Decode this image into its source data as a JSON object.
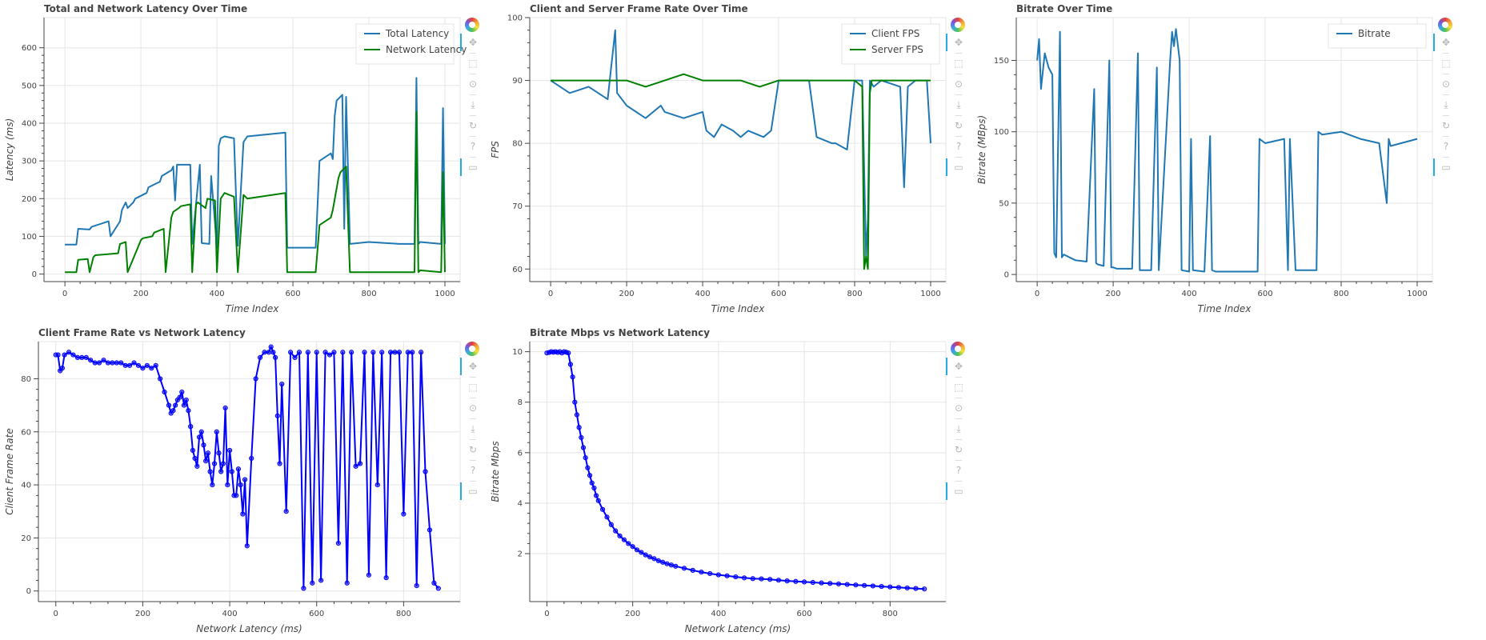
{
  "colors": {
    "blue": "#1f77b4",
    "green": "#008000",
    "scatter": "#0000ff",
    "grid": "#e5e5e5",
    "axis": "#444444",
    "active_tool": "#26aae1"
  },
  "toolbar": {
    "tools": [
      {
        "name": "bokeh-logo-icon",
        "glyph": ""
      },
      {
        "name": "pan-tool-icon",
        "glyph": "✥"
      },
      {
        "name": "box-zoom-tool-icon",
        "glyph": "⬚"
      },
      {
        "name": "wheel-zoom-tool-icon",
        "glyph": "⊙"
      },
      {
        "name": "save-tool-icon",
        "glyph": "⤓"
      },
      {
        "name": "reset-tool-icon",
        "glyph": "↻"
      },
      {
        "name": "help-tool-icon",
        "glyph": "?"
      },
      {
        "name": "hover-tool-icon",
        "glyph": "▭"
      }
    ]
  },
  "chart_data": [
    {
      "type": "line",
      "title": "Total and Network Latency Over Time",
      "xlabel": "Time Index",
      "ylabel": "Latency (ms)",
      "xlim": [
        -55,
        1040
      ],
      "ylim": [
        -20,
        680
      ],
      "xticks": [
        0,
        200,
        400,
        600,
        800,
        1000
      ],
      "yticks": [
        0,
        100,
        200,
        300,
        400,
        500,
        600
      ],
      "legend": "top-right",
      "series": [
        {
          "name": "Total Latency",
          "color": "#1f77b4",
          "x": [
            0,
            30,
            35,
            65,
            70,
            115,
            120,
            145,
            150,
            160,
            165,
            180,
            185,
            215,
            220,
            250,
            255,
            280,
            285,
            290,
            295,
            330,
            335,
            355,
            360,
            380,
            385,
            400,
            405,
            410,
            420,
            445,
            455,
            470,
            480,
            580,
            585,
            660,
            670,
            700,
            705,
            710,
            715,
            730,
            735,
            740,
            750,
            800,
            880,
            920,
            925,
            930,
            935,
            990,
            995,
            1000
          ],
          "y": [
            78,
            78,
            120,
            118,
            125,
            140,
            100,
            140,
            170,
            190,
            175,
            190,
            200,
            215,
            230,
            245,
            260,
            275,
            285,
            195,
            290,
            290,
            80,
            290,
            82,
            80,
            260,
            70,
            340,
            360,
            365,
            360,
            75,
            350,
            365,
            375,
            70,
            70,
            300,
            320,
            305,
            420,
            460,
            475,
            120,
            470,
            80,
            85,
            80,
            80,
            520,
            80,
            85,
            80,
            440,
            80
          ]
        },
        {
          "name": "Network Latency",
          "color": "#008000",
          "x": [
            0,
            30,
            35,
            60,
            65,
            75,
            80,
            140,
            145,
            160,
            165,
            200,
            205,
            230,
            235,
            260,
            265,
            280,
            285,
            300,
            305,
            330,
            335,
            345,
            350,
            370,
            375,
            395,
            400,
            410,
            420,
            445,
            455,
            470,
            480,
            580,
            585,
            660,
            670,
            700,
            705,
            720,
            725,
            740,
            750,
            920,
            925,
            930,
            935,
            990,
            995,
            1000
          ],
          "y": [
            5,
            5,
            38,
            40,
            5,
            45,
            50,
            55,
            80,
            85,
            5,
            90,
            95,
            100,
            110,
            120,
            5,
            150,
            165,
            175,
            180,
            185,
            5,
            185,
            190,
            175,
            200,
            195,
            5,
            200,
            215,
            205,
            5,
            210,
            200,
            215,
            5,
            5,
            130,
            150,
            170,
            255,
            270,
            285,
            5,
            5,
            430,
            5,
            10,
            5,
            270,
            5
          ]
        }
      ]
    },
    {
      "type": "line",
      "title": "Client and Server Frame Rate Over Time",
      "xlabel": "Time Index",
      "ylabel": "FPS",
      "xlim": [
        -55,
        1040
      ],
      "ylim": [
        58,
        100
      ],
      "xticks": [
        0,
        200,
        400,
        600,
        800,
        1000
      ],
      "yticks": [
        60,
        70,
        80,
        90,
        100
      ],
      "legend": "top-right",
      "series": [
        {
          "name": "Client FPS",
          "color": "#1f77b4",
          "x": [
            0,
            50,
            100,
            150,
            170,
            175,
            200,
            250,
            290,
            300,
            350,
            400,
            410,
            430,
            450,
            480,
            500,
            520,
            560,
            580,
            600,
            680,
            700,
            740,
            750,
            780,
            800,
            820,
            830,
            835,
            840,
            850,
            870,
            920,
            930,
            940,
            960,
            990,
            1000
          ],
          "y": [
            90,
            88,
            89,
            87,
            98,
            88,
            86,
            84,
            86,
            85,
            84,
            85,
            82,
            81,
            83,
            82,
            81,
            82,
            81,
            82,
            90,
            90,
            81,
            80,
            80,
            79,
            90,
            90,
            62,
            68,
            90,
            89,
            90,
            89,
            73,
            89,
            90,
            90,
            80
          ]
        },
        {
          "name": "Server FPS",
          "color": "#008000",
          "x": [
            0,
            50,
            100,
            150,
            200,
            250,
            300,
            350,
            400,
            450,
            500,
            550,
            600,
            650,
            700,
            750,
            800,
            820,
            825,
            830,
            835,
            840,
            845,
            850,
            900,
            950,
            1000
          ],
          "y": [
            90,
            90,
            90,
            90,
            90,
            89,
            90,
            91,
            90,
            90,
            90,
            89,
            90,
            90,
            90,
            90,
            90,
            89,
            60,
            62,
            60,
            88,
            90,
            90,
            90,
            90,
            90
          ]
        }
      ]
    },
    {
      "type": "line",
      "title": "Bitrate Over Time",
      "xlabel": "Time Index",
      "ylabel": "Bitrate (MBps)",
      "xlim": [
        -55,
        1040
      ],
      "ylim": [
        -5,
        180
      ],
      "xticks": [
        0,
        200,
        400,
        600,
        800,
        1000
      ],
      "yticks": [
        0,
        50,
        100,
        150
      ],
      "legend": "top-right",
      "series": [
        {
          "name": "Bitrate",
          "color": "#1f77b4",
          "x": [
            0,
            5,
            10,
            20,
            30,
            40,
            45,
            50,
            60,
            65,
            70,
            100,
            130,
            150,
            155,
            160,
            175,
            190,
            195,
            200,
            210,
            250,
            265,
            270,
            300,
            315,
            320,
            350,
            355,
            360,
            365,
            375,
            380,
            400,
            405,
            410,
            440,
            455,
            460,
            470,
            580,
            585,
            600,
            650,
            660,
            665,
            680,
            700,
            735,
            740,
            750,
            800,
            850,
            900,
            920,
            925,
            930,
            1000
          ],
          "y": [
            150,
            165,
            130,
            155,
            145,
            140,
            15,
            12,
            170,
            12,
            14,
            10,
            9,
            130,
            8,
            7,
            6,
            150,
            5,
            5,
            4,
            4,
            155,
            3,
            3,
            145,
            3,
            150,
            170,
            160,
            172,
            150,
            3,
            2,
            95,
            3,
            2,
            97,
            3,
            2,
            2,
            95,
            92,
            95,
            3,
            95,
            3,
            3,
            3,
            100,
            98,
            100,
            95,
            92,
            50,
            95,
            90,
            95
          ]
        }
      ]
    },
    {
      "type": "line",
      "title": "Client Frame Rate vs Network Latency",
      "xlabel": "Network Latency (ms)",
      "ylabel": "Client Frame Rate",
      "xlim": [
        -40,
        930
      ],
      "ylim": [
        -4,
        94
      ],
      "xticks": [
        0,
        200,
        400,
        600,
        800
      ],
      "yticks": [
        0,
        20,
        40,
        60,
        80
      ],
      "markers": true,
      "series": [
        {
          "name": "",
          "color": "#0000ff",
          "x": [
            0,
            5,
            10,
            15,
            20,
            30,
            40,
            50,
            60,
            70,
            80,
            90,
            100,
            110,
            120,
            130,
            140,
            150,
            160,
            170,
            180,
            190,
            200,
            210,
            220,
            230,
            240,
            250,
            260,
            265,
            270,
            275,
            280,
            285,
            290,
            295,
            300,
            305,
            310,
            315,
            320,
            325,
            330,
            335,
            340,
            345,
            350,
            355,
            360,
            365,
            370,
            375,
            380,
            385,
            390,
            395,
            400,
            405,
            410,
            415,
            420,
            425,
            430,
            435,
            440,
            450,
            460,
            470,
            480,
            490,
            495,
            500,
            505,
            510,
            515,
            520,
            530,
            540,
            550,
            560,
            570,
            580,
            590,
            600,
            610,
            620,
            630,
            640,
            650,
            660,
            670,
            680,
            690,
            700,
            710,
            720,
            730,
            740,
            750,
            760,
            770,
            780,
            790,
            800,
            810,
            820,
            830,
            840,
            850,
            860,
            870,
            880
          ],
          "y": [
            89,
            89,
            83,
            84,
            89,
            90,
            89,
            88,
            88,
            88,
            87,
            86,
            86,
            87,
            86,
            86,
            86,
            86,
            85,
            85,
            86,
            85,
            84,
            85,
            84,
            85,
            80,
            75,
            70,
            67,
            68,
            70,
            72,
            73,
            75,
            70,
            72,
            68,
            62,
            53,
            50,
            47,
            58,
            60,
            55,
            49,
            52,
            45,
            40,
            48,
            60,
            52,
            45,
            48,
            69,
            40,
            53,
            45,
            36,
            36,
            46,
            40,
            29,
            42,
            17,
            50,
            80,
            88,
            90,
            90,
            92,
            90,
            88,
            66,
            48,
            78,
            30,
            90,
            88,
            90,
            1,
            90,
            3,
            90,
            4,
            90,
            89,
            90,
            18,
            90,
            3,
            90,
            47,
            48,
            90,
            6,
            90,
            40,
            90,
            5,
            90,
            90,
            90,
            29,
            90,
            90,
            2,
            90,
            45,
            23,
            3,
            1
          ]
        }
      ]
    },
    {
      "type": "line",
      "title": "Bitrate Mbps vs Network Latency",
      "xlabel": "Network Latency (ms)",
      "ylabel": "Bitrate Mbps",
      "xlim": [
        -40,
        930
      ],
      "ylim": [
        0.1,
        10.4
      ],
      "xticks": [
        0,
        200,
        400,
        600,
        800
      ],
      "yticks": [
        2,
        4,
        6,
        8,
        10
      ],
      "markers": true,
      "series": [
        {
          "name": "",
          "color": "#0000ff",
          "x": [
            0,
            5,
            10,
            15,
            20,
            25,
            30,
            35,
            40,
            45,
            50,
            55,
            60,
            65,
            70,
            75,
            80,
            85,
            90,
            95,
            100,
            105,
            110,
            115,
            120,
            130,
            140,
            150,
            160,
            170,
            180,
            190,
            200,
            210,
            220,
            230,
            240,
            250,
            260,
            270,
            280,
            290,
            300,
            320,
            340,
            360,
            380,
            400,
            420,
            440,
            460,
            480,
            500,
            520,
            540,
            560,
            580,
            600,
            620,
            640,
            660,
            680,
            700,
            720,
            740,
            760,
            780,
            800,
            820,
            840,
            860,
            880
          ],
          "y": [
            9.95,
            9.97,
            10.0,
            9.98,
            10.0,
            9.97,
            10.0,
            9.95,
            10.0,
            9.98,
            9.95,
            9.5,
            9.0,
            8.0,
            7.5,
            7.0,
            6.6,
            6.2,
            5.8,
            5.4,
            5.1,
            4.8,
            4.6,
            4.3,
            4.1,
            3.75,
            3.45,
            3.15,
            2.9,
            2.7,
            2.55,
            2.4,
            2.28,
            2.15,
            2.05,
            1.95,
            1.87,
            1.8,
            1.72,
            1.66,
            1.6,
            1.55,
            1.5,
            1.42,
            1.34,
            1.27,
            1.21,
            1.16,
            1.12,
            1.08,
            1.04,
            1.01,
            1.0,
            0.98,
            0.95,
            0.92,
            0.9,
            0.88,
            0.86,
            0.84,
            0.82,
            0.8,
            0.78,
            0.76,
            0.74,
            0.72,
            0.7,
            0.68,
            0.66,
            0.64,
            0.62,
            0.6
          ]
        }
      ]
    }
  ]
}
